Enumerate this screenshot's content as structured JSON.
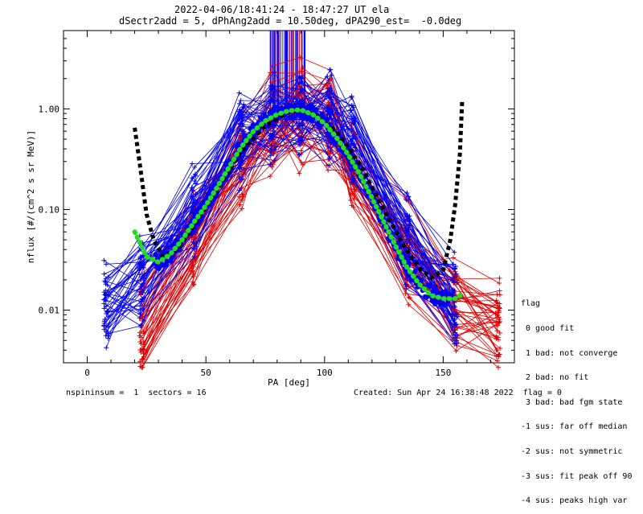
{
  "header": {
    "line1": "2022-04-06/18:41:24 - 18:47:27 UT ela",
    "line2": "dSectr2add = 5, dPhAng2add = 10.50deg, dPA290_est=  -0.0deg"
  },
  "legend": {
    "title": "flag",
    "items": [
      " 0 good fit",
      " 1 bad: not converge",
      " 2 bad: no fit",
      " 3 bad: bad fgm state",
      "-1 sus: far off median",
      "-2 sus: not symmetric",
      "-3 sus: fit peak off 90",
      "-4 sus: peaks high var"
    ]
  },
  "footer": {
    "left": "nspininsum =  1  sectors = 16",
    "right": "Created: Sun Apr 24 16:38:48 2022  flag = 0"
  },
  "colors": {
    "red": "#e00000",
    "blue": "#0000ee",
    "green": "#22dd22",
    "black": "#000000"
  },
  "chart_data": {
    "type": "scatter",
    "xlabel": "PA [deg]",
    "ylabel": "nflux [#/(cm^2 s sr MeV)]",
    "xlim": [
      -10,
      180
    ],
    "ylim": [
      0.003,
      6.0
    ],
    "yscale": "log",
    "xticks": [
      0,
      50,
      100,
      150
    ],
    "yticks": [
      0.01,
      0.1,
      1.0
    ],
    "ytick_labels": [
      "0.01",
      "0.10",
      "1.00"
    ],
    "series": [
      {
        "color": "blue",
        "style": "lines+plus",
        "x": [
          8,
          23,
          45,
          65,
          78,
          90,
          102,
          112,
          135,
          155
        ],
        "y": [
          0.012,
          0.02,
          0.1,
          0.5,
          0.85,
          1.0,
          0.85,
          0.5,
          0.05,
          0.012
        ]
      },
      {
        "color": "red",
        "style": "lines+plus",
        "x": [
          23,
          45,
          65,
          78,
          90,
          102,
          112,
          135,
          155,
          173
        ],
        "y": [
          0.008,
          0.06,
          0.35,
          0.7,
          0.9,
          0.8,
          0.3,
          0.04,
          0.015,
          0.009
        ]
      },
      {
        "color": "green",
        "style": "dotted-thick",
        "x": [
          20,
          25,
          30,
          35,
          40,
          45,
          50,
          55,
          60,
          65,
          70,
          75,
          80,
          85,
          90,
          95,
          100,
          105,
          110,
          115,
          120,
          125,
          130,
          135,
          140,
          145,
          150,
          155,
          157
        ],
        "y": [
          0.06,
          0.034,
          0.03,
          0.036,
          0.05,
          0.075,
          0.11,
          0.17,
          0.27,
          0.42,
          0.6,
          0.76,
          0.88,
          0.96,
          0.98,
          0.88,
          0.72,
          0.52,
          0.35,
          0.22,
          0.13,
          0.075,
          0.043,
          0.026,
          0.018,
          0.014,
          0.013,
          0.013,
          0.014
        ]
      },
      {
        "color": "black",
        "style": "dashed-thick",
        "x": [
          20,
          22,
          25,
          28,
          32,
          38,
          45,
          55,
          65,
          75,
          85,
          90,
          95,
          105,
          115,
          125,
          133,
          140,
          145,
          150,
          153,
          155,
          157,
          158
        ],
        "y": [
          0.65,
          0.3,
          0.09,
          0.05,
          0.034,
          0.04,
          0.07,
          0.16,
          0.38,
          0.68,
          0.93,
          0.98,
          0.9,
          0.6,
          0.28,
          0.1,
          0.045,
          0.026,
          0.021,
          0.025,
          0.05,
          0.11,
          0.35,
          1.2
        ]
      }
    ]
  }
}
